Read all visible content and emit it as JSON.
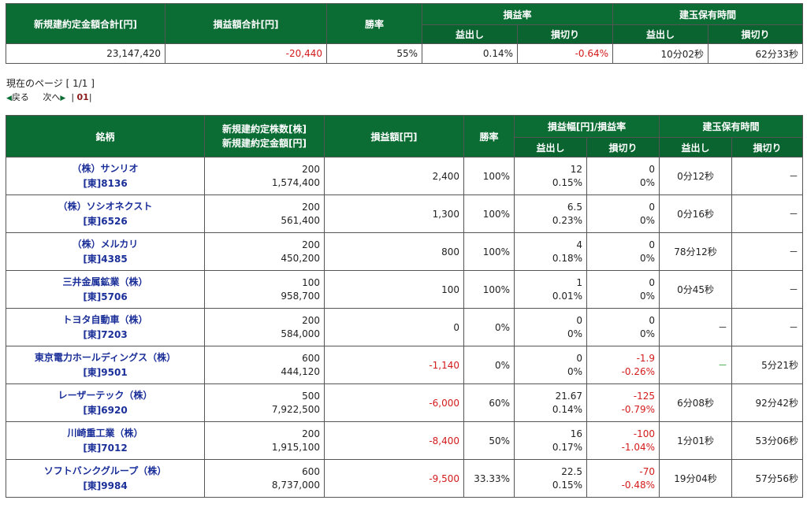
{
  "summary": {
    "headers": {
      "total_new": "新規建約定金額合計[円]",
      "total_pl": "損益額合計[円]",
      "win_rate": "勝率",
      "pl_rate": "損益率",
      "hold_time": "建玉保有時間",
      "profit": "益出し",
      "loss": "損切り"
    },
    "values": {
      "total_new": "23,147,420",
      "total_pl": "-20,440",
      "win_rate": "55%",
      "rate_profit": "0.14%",
      "rate_loss": "-0.64%",
      "hold_profit": "10分02秒",
      "hold_loss": "62分33秒"
    }
  },
  "pager": {
    "current_label": "現在のページ",
    "current_value": "[ 1/1 ]",
    "prev_label": "戻る",
    "next_label": "次へ",
    "page_num": "01"
  },
  "main": {
    "headers": {
      "name": "銘柄",
      "shares": "新規建約定株数[株]",
      "amount": "新規建約定金額[円]",
      "pl": "損益額[円]",
      "win": "勝率",
      "width_rate": "損益幅[円]/損益率",
      "hold": "建玉保有時間",
      "profit": "益出し",
      "loss": "損切り"
    },
    "rows": [
      {
        "name": "（株）サンリオ",
        "code": "[東]8136",
        "shares": "200",
        "amount": "1,574,400",
        "pl": "2,400",
        "pl_neg": false,
        "win": "100%",
        "pw": "12",
        "pr": "0.15%",
        "lw": "0",
        "lr": "0%",
        "lneg": false,
        "hp": "0分12秒",
        "hp_type": "t",
        "hl": "－",
        "hl_type": "dash"
      },
      {
        "name": "（株）ソシオネクスト",
        "code": "[東]6526",
        "shares": "200",
        "amount": "561,400",
        "pl": "1,300",
        "pl_neg": false,
        "win": "100%",
        "pw": "6.5",
        "pr": "0.23%",
        "lw": "0",
        "lr": "0%",
        "lneg": false,
        "hp": "0分16秒",
        "hp_type": "t",
        "hl": "－",
        "hl_type": "dash"
      },
      {
        "name": "（株）メルカリ",
        "code": "[東]4385",
        "shares": "200",
        "amount": "450,200",
        "pl": "800",
        "pl_neg": false,
        "win": "100%",
        "pw": "4",
        "pr": "0.18%",
        "lw": "0",
        "lr": "0%",
        "lneg": false,
        "hp": "78分12秒",
        "hp_type": "t",
        "hl": "－",
        "hl_type": "dash"
      },
      {
        "name": "三井金属鉱業（株）",
        "code": "[東]5706",
        "shares": "100",
        "amount": "958,700",
        "pl": "100",
        "pl_neg": false,
        "win": "100%",
        "pw": "1",
        "pr": "0.01%",
        "lw": "0",
        "lr": "0%",
        "lneg": false,
        "hp": "0分45秒",
        "hp_type": "t",
        "hl": "－",
        "hl_type": "dash"
      },
      {
        "name": "トヨタ自動車（株）",
        "code": "[東]7203",
        "shares": "200",
        "amount": "584,000",
        "pl": "0",
        "pl_neg": false,
        "win": "0%",
        "pw": "0",
        "pr": "0%",
        "lw": "0",
        "lr": "0%",
        "lneg": false,
        "hp": "－",
        "hp_type": "dash",
        "hl": "－",
        "hl_type": "dash"
      },
      {
        "name": "東京電力ホールディングス（株）",
        "code": "[東]9501",
        "shares": "600",
        "amount": "444,120",
        "pl": "-1,140",
        "pl_neg": true,
        "win": "0%",
        "pw": "0",
        "pr": "0%",
        "lw": "-1.9",
        "lr": "-0.26%",
        "lneg": true,
        "hp": "－",
        "hp_type": "green",
        "hl": "5分21秒",
        "hl_type": "t"
      },
      {
        "name": "レーザーテック（株）",
        "code": "[東]6920",
        "shares": "500",
        "amount": "7,922,500",
        "pl": "-6,000",
        "pl_neg": true,
        "win": "60%",
        "pw": "21.67",
        "pr": "0.14%",
        "lw": "-125",
        "lr": "-0.79%",
        "lneg": true,
        "hp": "6分08秒",
        "hp_type": "t",
        "hl": "92分42秒",
        "hl_type": "t"
      },
      {
        "name": "川崎重工業（株）",
        "code": "[東]7012",
        "shares": "200",
        "amount": "1,915,100",
        "pl": "-8,400",
        "pl_neg": true,
        "win": "50%",
        "pw": "16",
        "pr": "0.17%",
        "lw": "-100",
        "lr": "-1.04%",
        "lneg": true,
        "hp": "1分01秒",
        "hp_type": "t",
        "hl": "53分06秒",
        "hl_type": "t"
      },
      {
        "name": "ソフトバンクグループ（株）",
        "code": "[東]9984",
        "shares": "600",
        "amount": "8,737,000",
        "pl": "-9,500",
        "pl_neg": true,
        "win": "33.33%",
        "pw": "22.5",
        "pr": "0.15%",
        "lw": "-70",
        "lr": "-0.48%",
        "lneg": true,
        "hp": "19分04秒",
        "hp_type": "t",
        "hl": "57分56秒",
        "hl_type": "t"
      }
    ]
  },
  "colors": {
    "header_bg": "#0c6d34",
    "stock_name": "#1b2f99",
    "negative": "#d41b1b",
    "positive": "#2aa236"
  }
}
